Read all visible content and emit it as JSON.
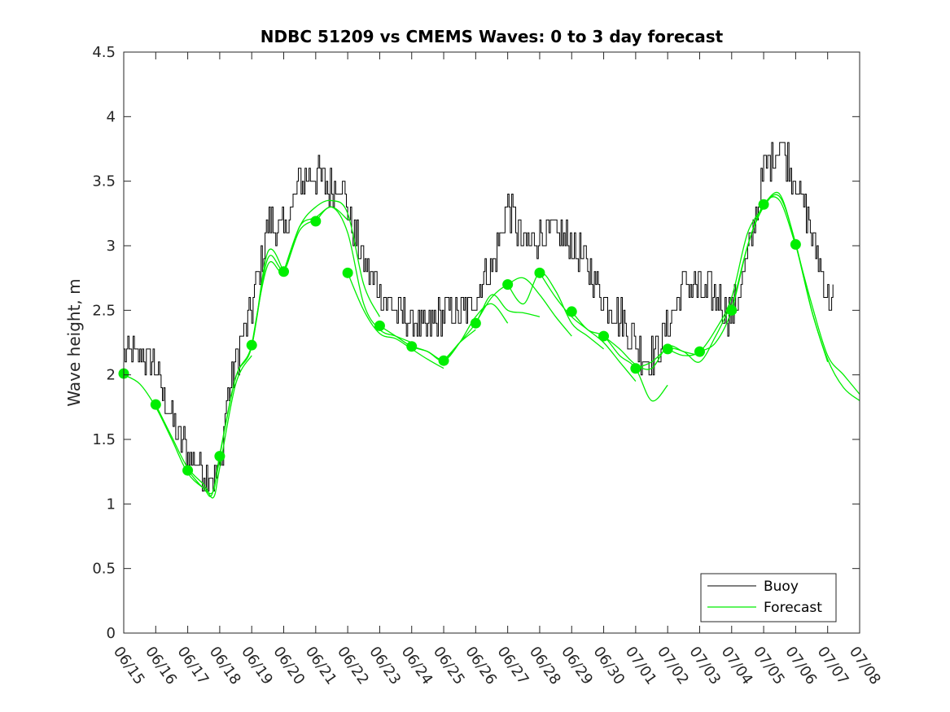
{
  "chart_data": {
    "type": "line",
    "title": "NDBC 51209 vs CMEMS Waves: 0 to 3 day forecast",
    "xlabel": "",
    "ylabel": "Wave height, m",
    "xlim": [
      0,
      23
    ],
    "ylim": [
      0,
      4.5
    ],
    "x_tick_labels": [
      "06/15",
      "06/16",
      "06/17",
      "06/18",
      "06/19",
      "06/20",
      "06/21",
      "06/22",
      "06/23",
      "06/24",
      "06/25",
      "06/26",
      "06/27",
      "06/28",
      "06/29",
      "06/30",
      "07/01",
      "07/02",
      "07/03",
      "07/04",
      "07/05",
      "07/06",
      "07/07",
      "07/08"
    ],
    "y_ticks": [
      0,
      0.5,
      1,
      1.5,
      2,
      2.5,
      3,
      3.5,
      4,
      4.5
    ],
    "y_tick_labels": [
      "0",
      "0.5",
      "1",
      "1.5",
      "2",
      "2.5",
      "3",
      "3.5",
      "4",
      "4.5"
    ],
    "grid": false,
    "legend": {
      "placement": "bottom-right",
      "entries": [
        {
          "label": "Buoy",
          "color": "#000000"
        },
        {
          "label": "Forecast",
          "color": "#00ee00"
        }
      ]
    },
    "buoy_color": "#000000",
    "forecast_color": "#00ee00",
    "buoy_trend": {
      "x": [
        0,
        0.5,
        0.9,
        1.3,
        1.7,
        2.2,
        2.6,
        3.0,
        3.2,
        3.6,
        4.0,
        4.5,
        5.0,
        5.5,
        6.0,
        6.4,
        6.8,
        7.2,
        7.6,
        8.0,
        8.5,
        9.0,
        9.5,
        10.0,
        10.5,
        11.0,
        11.5,
        12.0,
        12.5,
        13.0,
        13.5,
        14.0,
        14.5,
        15.0,
        15.5,
        16.0,
        16.3,
        16.6,
        17.0,
        17.5,
        18.0,
        18.5,
        19.0,
        19.5,
        20.0,
        20.5,
        21.0,
        21.5,
        21.8,
        22.0,
        22.2
      ],
      "y": [
        2.15,
        2.15,
        2.1,
        1.8,
        1.5,
        1.35,
        1.22,
        1.25,
        1.8,
        2.2,
        2.5,
        3.2,
        3.1,
        3.5,
        3.55,
        3.45,
        3.5,
        3.1,
        2.8,
        2.65,
        2.5,
        2.4,
        2.35,
        2.5,
        2.45,
        2.6,
        2.85,
        3.3,
        3.0,
        3.1,
        3.1,
        3.0,
        2.85,
        2.6,
        2.45,
        2.25,
        2.15,
        2.15,
        2.4,
        2.7,
        2.65,
        2.6,
        2.45,
        2.9,
        3.6,
        3.8,
        3.5,
        3.1,
        2.8,
        2.6,
        2.6
      ],
      "noise_amplitude": 0.15
    },
    "forecast_runs": [
      {
        "x": [
          0,
          0.5,
          1.0,
          1.5,
          2.0,
          2.5,
          2.75,
          3.0
        ],
        "y": [
          2.0,
          1.93,
          1.75,
          1.5,
          1.24,
          1.12,
          1.07,
          1.35
        ]
      },
      {
        "x": [
          1,
          1.5,
          2.0,
          2.5,
          2.8,
          3.0,
          3.5,
          4.0
        ],
        "y": [
          1.77,
          1.52,
          1.28,
          1.15,
          1.05,
          1.28,
          1.93,
          2.15
        ]
      },
      {
        "x": [
          2,
          2.5,
          2.8,
          3.0,
          3.5,
          4.0,
          4.5,
          5.0
        ],
        "y": [
          1.26,
          1.12,
          1.1,
          1.38,
          1.98,
          2.22,
          2.95,
          2.8
        ]
      },
      {
        "x": [
          3,
          3.5,
          4.0,
          4.5,
          5.0,
          5.5,
          6.0
        ],
        "y": [
          1.37,
          1.98,
          2.23,
          2.9,
          2.82,
          3.12,
          3.2
        ]
      },
      {
        "x": [
          4,
          4.5,
          5.0,
          5.5,
          6.0,
          6.5,
          7.0
        ],
        "y": [
          2.23,
          2.85,
          2.8,
          3.15,
          3.22,
          3.3,
          3.2
        ]
      },
      {
        "x": [
          5,
          5.5,
          6.0,
          6.5,
          7.0,
          7.5,
          8.0
        ],
        "y": [
          2.8,
          3.15,
          3.3,
          3.35,
          3.25,
          2.7,
          2.45
        ]
      },
      {
        "x": [
          6,
          6.5,
          7.0,
          7.5,
          8.0,
          8.5,
          9.0
        ],
        "y": [
          3.19,
          3.3,
          3.1,
          2.55,
          2.35,
          2.3,
          2.25
        ]
      },
      {
        "x": [
          7,
          7.5,
          8.0,
          8.5,
          9.0,
          9.5,
          10.0
        ],
        "y": [
          2.79,
          2.5,
          2.32,
          2.28,
          2.2,
          2.12,
          2.05
        ]
      },
      {
        "x": [
          8,
          8.5,
          9.0,
          9.5,
          10.0,
          10.5,
          11.0
        ],
        "y": [
          2.38,
          2.3,
          2.22,
          2.18,
          2.12,
          2.25,
          2.35
        ]
      },
      {
        "x": [
          9,
          9.5,
          10.0,
          10.5,
          11.0,
          11.5,
          12.0
        ],
        "y": [
          2.22,
          2.18,
          2.11,
          2.25,
          2.45,
          2.55,
          2.4
        ]
      },
      {
        "x": [
          10,
          10.5,
          11.0,
          11.5,
          12.0,
          12.5,
          13.0
        ],
        "y": [
          2.11,
          2.25,
          2.4,
          2.62,
          2.5,
          2.48,
          2.45
        ]
      },
      {
        "x": [
          11,
          11.5,
          12.0,
          12.5,
          13.0,
          13.5,
          14.0
        ],
        "y": [
          2.4,
          2.6,
          2.7,
          2.75,
          2.62,
          2.45,
          2.3
        ]
      },
      {
        "x": [
          12,
          12.5,
          13.0,
          13.5,
          14.0,
          14.5,
          15.0
        ],
        "y": [
          2.7,
          2.55,
          2.79,
          2.65,
          2.4,
          2.3,
          2.2
        ]
      },
      {
        "x": [
          13,
          13.5,
          14.0,
          14.5,
          15.0,
          15.5,
          16.0
        ],
        "y": [
          2.79,
          2.6,
          2.45,
          2.35,
          2.25,
          2.1,
          1.95
        ]
      },
      {
        "x": [
          14,
          14.5,
          15.0,
          15.5,
          16.0,
          16.5,
          17.0
        ],
        "y": [
          2.49,
          2.35,
          2.3,
          2.15,
          2.05,
          1.8,
          1.92
        ]
      },
      {
        "x": [
          15,
          15.5,
          16.0,
          16.5,
          17.0,
          17.5,
          18.0
        ],
        "y": [
          2.3,
          2.2,
          2.08,
          2.05,
          2.22,
          2.18,
          2.15
        ]
      },
      {
        "x": [
          16,
          16.5,
          17.0,
          17.5,
          18.0,
          18.5,
          19.0
        ],
        "y": [
          2.05,
          2.1,
          2.2,
          2.18,
          2.1,
          2.3,
          2.55
        ]
      },
      {
        "x": [
          17,
          17.5,
          18.0,
          18.5,
          19.0,
          19.5,
          20.0
        ],
        "y": [
          2.2,
          2.15,
          2.18,
          2.35,
          2.6,
          3.1,
          3.3
        ]
      },
      {
        "x": [
          18,
          18.5,
          19.0,
          19.5,
          20.0,
          20.5,
          21.0
        ],
        "y": [
          2.18,
          2.25,
          2.5,
          3.0,
          3.32,
          3.35,
          3.0
        ]
      },
      {
        "x": [
          19,
          19.5,
          20.0,
          20.5,
          21.0,
          21.5,
          22.0
        ],
        "y": [
          2.5,
          3.0,
          3.3,
          3.38,
          3.02,
          2.5,
          2.1
        ]
      },
      {
        "x": [
          20,
          20.5,
          21.0,
          21.5,
          22.0,
          22.5,
          23.0
        ],
        "y": [
          3.32,
          3.4,
          3.01,
          2.5,
          2.12,
          1.9,
          1.8
        ]
      },
      {
        "x": [
          21,
          21.5,
          22.0,
          22.5,
          23.0
        ],
        "y": [
          3.01,
          2.55,
          2.15,
          2.0,
          1.85
        ]
      }
    ],
    "forecast_markers": {
      "x": [
        0,
        1,
        2,
        3,
        4,
        5,
        6,
        7,
        8,
        9,
        10,
        11,
        12,
        13,
        14,
        15,
        16,
        17,
        18,
        19,
        20,
        21
      ],
      "y": [
        2.01,
        1.77,
        1.26,
        1.37,
        2.23,
        2.8,
        3.19,
        2.79,
        2.38,
        2.22,
        2.11,
        2.4,
        2.7,
        2.79,
        2.49,
        2.3,
        2.05,
        2.2,
        2.18,
        2.5,
        3.32,
        3.01
      ]
    }
  }
}
